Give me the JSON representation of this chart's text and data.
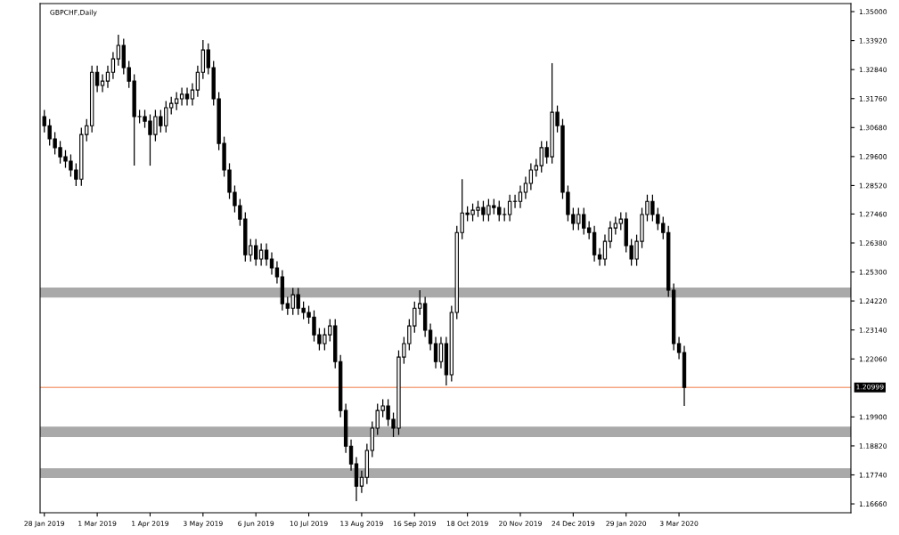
{
  "chart_data": {
    "type": "candlestick",
    "title": "GBPCHF,Daily",
    "categories": [
      "28 Jan 2019",
      null,
      null,
      null,
      null,
      null,
      null,
      null,
      null,
      null,
      "1 Mar 2019",
      null,
      null,
      null,
      null,
      null,
      null,
      null,
      null,
      null,
      "1 Apr 2019",
      null,
      null,
      null,
      null,
      null,
      null,
      null,
      null,
      null,
      "3 May 2019",
      null,
      null,
      null,
      null,
      null,
      null,
      null,
      null,
      null,
      "6 Jun 2019",
      null,
      null,
      null,
      null,
      null,
      null,
      null,
      null,
      null,
      "10 Jul 2019",
      null,
      null,
      null,
      null,
      null,
      null,
      null,
      null,
      null,
      "13 Aug 2019",
      null,
      null,
      null,
      null,
      null,
      null,
      null,
      null,
      null,
      "16 Sep 2019",
      null,
      null,
      null,
      null,
      null,
      null,
      null,
      null,
      null,
      "18 Oct 2019",
      null,
      null,
      null,
      null,
      null,
      null,
      null,
      null,
      null,
      "20 Nov 2019",
      null,
      null,
      null,
      null,
      null,
      null,
      null,
      null,
      null,
      "24 Dec 2019",
      null,
      null,
      null,
      null,
      null,
      null,
      null,
      null,
      null,
      "29 Jan 2020",
      null,
      null,
      null,
      null,
      null,
      null,
      null,
      null,
      null,
      "3 Mar 2020",
      null,
      null,
      null,
      null,
      null,
      null,
      null,
      null,
      null,
      null,
      null,
      null,
      null,
      null,
      null,
      null,
      null,
      null,
      null,
      null,
      null,
      null,
      null,
      null,
      null,
      null,
      null,
      null,
      null,
      null,
      null,
      null
    ],
    "ohlc": [
      [
        1.3109,
        1.3134,
        1.305,
        1.3075
      ],
      [
        1.3075,
        1.31,
        1.3001,
        1.3026
      ],
      [
        1.3026,
        1.3051,
        1.2968,
        1.2993
      ],
      [
        1.2993,
        1.3018,
        1.2934,
        1.2959
      ],
      [
        1.2959,
        1.2984,
        1.2918,
        1.2943
      ],
      [
        1.2943,
        1.2968,
        1.2885,
        1.291
      ],
      [
        1.291,
        1.2935,
        1.285,
        1.2876
      ],
      [
        1.2876,
        1.3067,
        1.2851,
        1.3042
      ],
      [
        1.3042,
        1.31,
        1.3017,
        1.3075
      ],
      [
        1.3075,
        1.3299,
        1.305,
        1.3274
      ],
      [
        1.3274,
        1.3299,
        1.32,
        1.3225
      ],
      [
        1.3225,
        1.3266,
        1.32,
        1.3241
      ],
      [
        1.3241,
        1.3299,
        1.3216,
        1.3274
      ],
      [
        1.3274,
        1.3349,
        1.3249,
        1.3324
      ],
      [
        1.3324,
        1.3414,
        1.3299,
        1.3374
      ],
      [
        1.3374,
        1.3399,
        1.3266,
        1.3291
      ],
      [
        1.3291,
        1.3316,
        1.3216,
        1.3241
      ],
      [
        1.3241,
        1.3266,
        1.2926,
        1.3109
      ],
      [
        1.3109,
        1.3134,
        1.3084,
        1.3109
      ],
      [
        1.3109,
        1.3134,
        1.3067,
        1.3092
      ],
      [
        1.3092,
        1.3117,
        1.2926,
        1.3042
      ],
      [
        1.3042,
        1.3134,
        1.3017,
        1.3109
      ],
      [
        1.3109,
        1.3134,
        1.305,
        1.3075
      ],
      [
        1.3075,
        1.3167,
        1.305,
        1.3142
      ],
      [
        1.3142,
        1.3183,
        1.3117,
        1.3158
      ],
      [
        1.3158,
        1.32,
        1.3133,
        1.3175
      ],
      [
        1.3175,
        1.3217,
        1.315,
        1.3192
      ],
      [
        1.3192,
        1.3217,
        1.315,
        1.3175
      ],
      [
        1.3175,
        1.3233,
        1.315,
        1.3208
      ],
      [
        1.3208,
        1.3299,
        1.3183,
        1.3274
      ],
      [
        1.3274,
        1.3394,
        1.3249,
        1.3357
      ],
      [
        1.3357,
        1.3382,
        1.3266,
        1.3291
      ],
      [
        1.3291,
        1.3316,
        1.315,
        1.3175
      ],
      [
        1.3175,
        1.32,
        1.2984,
        1.3009
      ],
      [
        1.3009,
        1.3034,
        1.2885,
        1.291
      ],
      [
        1.291,
        1.2935,
        1.2802,
        1.2827
      ],
      [
        1.2827,
        1.2852,
        1.2752,
        1.2777
      ],
      [
        1.2777,
        1.2802,
        1.2702,
        1.2727
      ],
      [
        1.2727,
        1.2752,
        1.2569,
        1.2594
      ],
      [
        1.2594,
        1.2653,
        1.2569,
        1.2628
      ],
      [
        1.2628,
        1.2653,
        1.2553,
        1.2578
      ],
      [
        1.2578,
        1.2636,
        1.2553,
        1.2611
      ],
      [
        1.2611,
        1.2636,
        1.2553,
        1.2578
      ],
      [
        1.2578,
        1.2603,
        1.252,
        1.2545
      ],
      [
        1.2545,
        1.257,
        1.2487,
        1.2512
      ],
      [
        1.2512,
        1.2537,
        1.2387,
        1.2412
      ],
      [
        1.2412,
        1.2437,
        1.237,
        1.2395
      ],
      [
        1.2395,
        1.247,
        1.237,
        1.2445
      ],
      [
        1.2445,
        1.247,
        1.237,
        1.2395
      ],
      [
        1.2395,
        1.242,
        1.2354,
        1.2379
      ],
      [
        1.2379,
        1.2404,
        1.2337,
        1.2362
      ],
      [
        1.2362,
        1.2387,
        1.2271,
        1.2296
      ],
      [
        1.2296,
        1.2321,
        1.2238,
        1.2263
      ],
      [
        1.2263,
        1.2321,
        1.2238,
        1.2296
      ],
      [
        1.2296,
        1.2354,
        1.2271,
        1.2329
      ],
      [
        1.2329,
        1.2354,
        1.2171,
        1.2196
      ],
      [
        1.2196,
        1.2221,
        1.1989,
        1.2014
      ],
      [
        1.2014,
        1.2039,
        1.1856,
        1.1881
      ],
      [
        1.1881,
        1.1906,
        1.179,
        1.1815
      ],
      [
        1.1815,
        1.184,
        1.1676,
        1.1732
      ],
      [
        1.1732,
        1.179,
        1.1707,
        1.1765
      ],
      [
        1.1765,
        1.189,
        1.174,
        1.1865
      ],
      [
        1.1865,
        1.1973,
        1.184,
        1.1948
      ],
      [
        1.1948,
        1.2039,
        1.1923,
        1.2014
      ],
      [
        1.2014,
        1.2056,
        1.1989,
        1.2031
      ],
      [
        1.2031,
        1.2056,
        1.1956,
        1.1981
      ],
      [
        1.1981,
        1.2006,
        1.1915,
        1.1948
      ],
      [
        1.1948,
        1.2238,
        1.1923,
        1.2213
      ],
      [
        1.2213,
        1.2288,
        1.2188,
        1.2263
      ],
      [
        1.2263,
        1.2354,
        1.2238,
        1.2329
      ],
      [
        1.2329,
        1.242,
        1.2304,
        1.2395
      ],
      [
        1.2395,
        1.2462,
        1.237,
        1.2412
      ],
      [
        1.2412,
        1.2437,
        1.2288,
        1.2313
      ],
      [
        1.2313,
        1.2338,
        1.2238,
        1.2263
      ],
      [
        1.2263,
        1.2288,
        1.2171,
        1.2196
      ],
      [
        1.2196,
        1.2288,
        1.2171,
        1.2263
      ],
      [
        1.2263,
        1.2288,
        1.2107,
        1.2147
      ],
      [
        1.2147,
        1.2404,
        1.2122,
        1.2379
      ],
      [
        1.2379,
        1.2702,
        1.2354,
        1.2677
      ],
      [
        1.2677,
        1.2876,
        1.2652,
        1.275
      ],
      [
        1.275,
        1.2775,
        1.2719,
        1.2744
      ],
      [
        1.2744,
        1.2785,
        1.2719,
        1.276
      ],
      [
        1.276,
        1.2795,
        1.2735,
        1.277
      ],
      [
        1.277,
        1.2795,
        1.2719,
        1.2744
      ],
      [
        1.2744,
        1.2802,
        1.2719,
        1.2777
      ],
      [
        1.2777,
        1.2802,
        1.2745,
        1.277
      ],
      [
        1.277,
        1.2795,
        1.2719,
        1.2744
      ],
      [
        1.2744,
        1.2769,
        1.2719,
        1.2744
      ],
      [
        1.2744,
        1.2818,
        1.2719,
        1.2793
      ],
      [
        1.2793,
        1.2818,
        1.2768,
        1.2793
      ],
      [
        1.2793,
        1.2852,
        1.2768,
        1.2827
      ],
      [
        1.2827,
        1.2885,
        1.2802,
        1.286
      ],
      [
        1.286,
        1.2935,
        1.2835,
        1.291
      ],
      [
        1.291,
        1.2951,
        1.2885,
        1.2926
      ],
      [
        1.2926,
        1.3018,
        1.2901,
        1.2993
      ],
      [
        1.2993,
        1.3018,
        1.2934,
        1.2959
      ],
      [
        1.2959,
        1.3308,
        1.2934,
        1.3125
      ],
      [
        1.3125,
        1.315,
        1.305,
        1.3075
      ],
      [
        1.3075,
        1.31,
        1.2802,
        1.2827
      ],
      [
        1.2827,
        1.2852,
        1.2719,
        1.2744
      ],
      [
        1.2744,
        1.2769,
        1.2686,
        1.2711
      ],
      [
        1.2711,
        1.2769,
        1.2686,
        1.2744
      ],
      [
        1.2744,
        1.2769,
        1.2669,
        1.2694
      ],
      [
        1.2694,
        1.2719,
        1.2652,
        1.2677
      ],
      [
        1.2677,
        1.2702,
        1.2569,
        1.2594
      ],
      [
        1.2594,
        1.2619,
        1.2553,
        1.2578
      ],
      [
        1.2578,
        1.2669,
        1.2553,
        1.2644
      ],
      [
        1.2644,
        1.2719,
        1.2619,
        1.2694
      ],
      [
        1.2694,
        1.2736,
        1.2669,
        1.2711
      ],
      [
        1.2711,
        1.2752,
        1.2686,
        1.2727
      ],
      [
        1.2727,
        1.2752,
        1.2603,
        1.2628
      ],
      [
        1.2628,
        1.2653,
        1.2553,
        1.2578
      ],
      [
        1.2578,
        1.2669,
        1.2553,
        1.2644
      ],
      [
        1.2644,
        1.2769,
        1.2619,
        1.2744
      ],
      [
        1.2744,
        1.2818,
        1.2719,
        1.2793
      ],
      [
        1.2793,
        1.2818,
        1.2719,
        1.2744
      ],
      [
        1.2744,
        1.2769,
        1.2686,
        1.2711
      ],
      [
        1.2711,
        1.2736,
        1.2652,
        1.2677
      ],
      [
        1.2677,
        1.2702,
        1.2437,
        1.2462
      ],
      [
        1.2462,
        1.2487,
        1.2238,
        1.2263
      ],
      [
        1.2263,
        1.2288,
        1.2205,
        1.223
      ],
      [
        1.223,
        1.2255,
        1.2031,
        1.21
      ],
      null,
      null,
      null,
      null,
      null,
      null,
      null,
      null,
      null,
      null,
      null,
      null,
      null,
      null,
      null,
      null,
      null,
      null,
      null,
      null,
      null,
      null,
      null,
      null,
      null,
      null,
      null,
      null,
      null,
      null,
      null
    ],
    "ylim": [
      1.1633,
      1.353
    ],
    "yticks": [
      {
        "value": 1.35,
        "label": "1.35000"
      },
      {
        "value": 1.3392,
        "label": "1.33920"
      },
      {
        "value": 1.3284,
        "label": "1.32840"
      },
      {
        "value": 1.3176,
        "label": "1.31760"
      },
      {
        "value": 1.3068,
        "label": "1.30680"
      },
      {
        "value": 1.296,
        "label": "1.29600"
      },
      {
        "value": 1.2852,
        "label": "1.28520"
      },
      {
        "value": 1.2746,
        "label": "1.27460"
      },
      {
        "value": 1.2638,
        "label": "1.26380"
      },
      {
        "value": 1.253,
        "label": "1.25300"
      },
      {
        "value": 1.2422,
        "label": "1.24220"
      },
      {
        "value": 1.2314,
        "label": "1.23140"
      },
      {
        "value": 1.2206,
        "label": "1.22060"
      },
      {
        "value": 1.199,
        "label": "1.19900"
      },
      {
        "value": 1.1882,
        "label": "1.18820"
      },
      {
        "value": 1.1774,
        "label": "1.17740"
      },
      {
        "value": 1.1666,
        "label": "1.16660"
      }
    ],
    "ref_lines": [
      {
        "axis": "y",
        "value": 1.20999,
        "label": "1.20999",
        "color": "#f4a582"
      }
    ],
    "bands": [
      {
        "axis": "y",
        "from": 1.2435,
        "to": 1.2472,
        "color": "#a9a9a9"
      },
      {
        "axis": "y",
        "from": 1.1915,
        "to": 1.1954,
        "color": "#a9a9a9"
      },
      {
        "axis": "y",
        "from": 1.1762,
        "to": 1.1799,
        "color": "#a9a9a9"
      }
    ]
  }
}
